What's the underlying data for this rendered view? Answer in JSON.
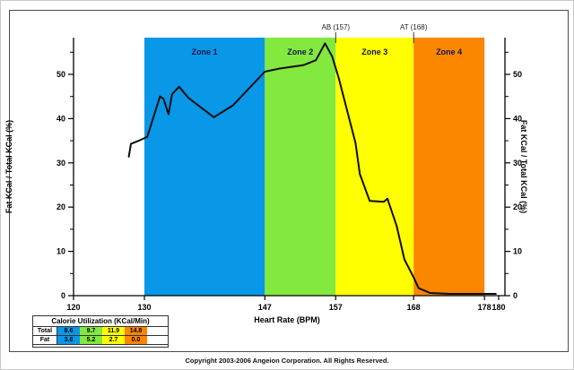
{
  "chart_data": {
    "type": "line",
    "title": "",
    "xlabel": "Heart Rate (BPM)",
    "ylabel_left": "Fat KCal / Total KCal (%)",
    "ylabel_right": "Fat KCal / Total KCal (%)",
    "xlim": [
      120,
      180
    ],
    "ylim": [
      0,
      58
    ],
    "x_ticks": [
      120,
      130,
      147,
      157,
      168,
      178,
      180
    ],
    "y_ticks": [
      0,
      10,
      20,
      30,
      40,
      50
    ],
    "y_minor_ticks": [
      5,
      15,
      25,
      35,
      45,
      55
    ],
    "grid": false,
    "zones": [
      {
        "label": "Zone 1",
        "from": 130,
        "to": 147,
        "color": "#0997E8"
      },
      {
        "label": "Zone 2",
        "from": 147,
        "to": 157,
        "color": "#84E93F"
      },
      {
        "label": "Zone 3",
        "from": 157,
        "to": 168,
        "color": "#FFFF00"
      },
      {
        "label": "Zone 4",
        "from": 168,
        "to": 178,
        "color": "#FB8600"
      }
    ],
    "annotations": [
      {
        "label": "AB (157)",
        "x": 157
      },
      {
        "label": "AT (168)",
        "x": 168
      }
    ],
    "series": [
      {
        "name": "Fat KCal / Total KCal (%)",
        "color": "#0d0d0d",
        "points": [
          [
            127.8,
            31.4
          ],
          [
            128.1,
            34.3
          ],
          [
            129.2,
            35.0
          ],
          [
            130.4,
            35.9
          ],
          [
            132.2,
            45.0
          ],
          [
            132.7,
            44.5
          ],
          [
            133.4,
            41.0
          ],
          [
            133.9,
            45.5
          ],
          [
            134.9,
            47.2
          ],
          [
            136.2,
            44.7
          ],
          [
            139.8,
            40.3
          ],
          [
            142.5,
            43.0
          ],
          [
            147.0,
            50.6
          ],
          [
            149.0,
            51.3
          ],
          [
            152.5,
            52.1
          ],
          [
            154.2,
            53.2
          ],
          [
            155.5,
            57.0
          ],
          [
            156.5,
            54.0
          ],
          [
            157.4,
            49.3
          ],
          [
            159.8,
            34.5
          ],
          [
            160.4,
            27.5
          ],
          [
            161.8,
            21.4
          ],
          [
            163.8,
            21.2
          ],
          [
            164.3,
            21.9
          ],
          [
            165.6,
            15.8
          ],
          [
            166.7,
            8.2
          ],
          [
            168.0,
            4.1
          ],
          [
            168.7,
            1.7
          ],
          [
            170.3,
            0.6
          ],
          [
            173.0,
            0.4
          ],
          [
            179.6,
            0.4
          ]
        ]
      }
    ]
  },
  "legend_table": {
    "title": "Calorie Utilization (KCal/Min)",
    "rows": [
      {
        "label": "Total",
        "values": [
          "8.6",
          "9.7",
          "11.9",
          "14.8"
        ]
      },
      {
        "label": "Fat",
        "values": [
          "3.8",
          "5.2",
          "2.7",
          "0.0"
        ]
      }
    ],
    "cell_colors": [
      "#0997E8",
      "#84E93F",
      "#FFFF00",
      "#FB8600"
    ]
  },
  "footer": {
    "copyright": "Copyright 2003-2006 Angeion Corporation. All Rights Reserved."
  }
}
